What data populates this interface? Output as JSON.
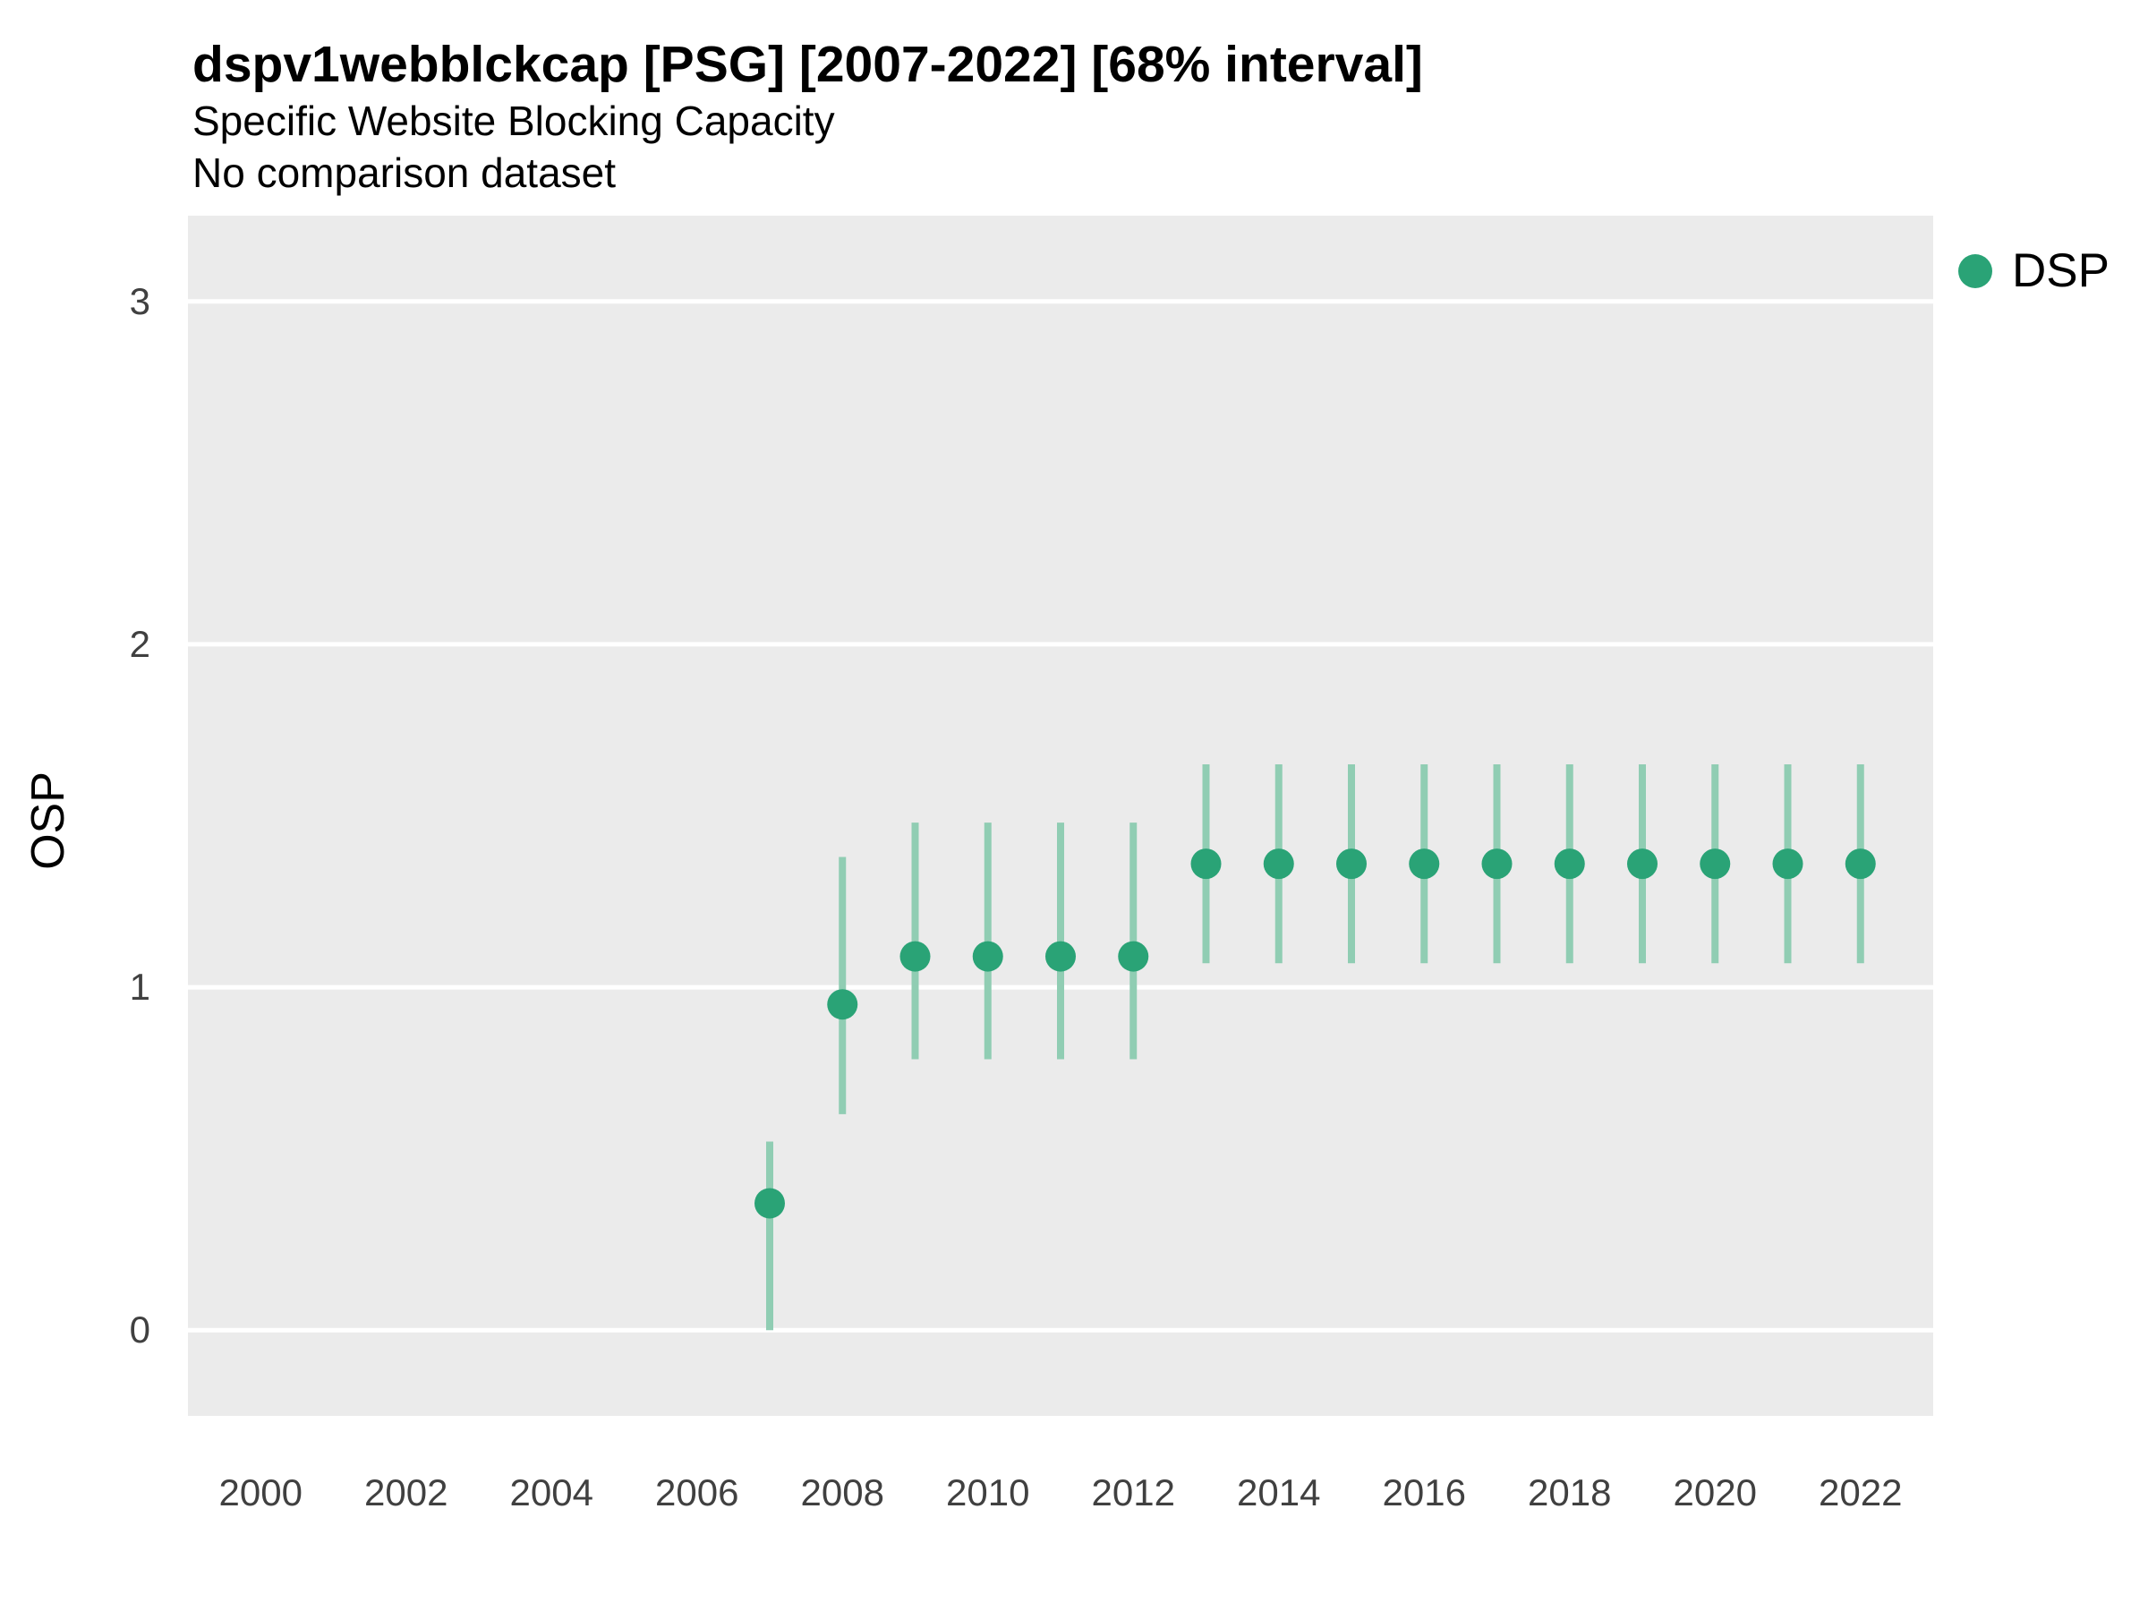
{
  "title": "dspv1webblckcap [PSG] [2007-2022] [68% interval]",
  "subtitle": "Specific Website Blocking Capacity",
  "note": "No comparison dataset",
  "y_axis_label": "OSP",
  "legend": {
    "items": [
      {
        "label": "DSP",
        "color": "#2aa376"
      }
    ]
  },
  "colors": {
    "panel_background": "#ebebeb",
    "grid_line": "#ffffff",
    "point": "#2aa376",
    "interval_line": "#90cdb3",
    "axis_text": "#404040",
    "title_text": "#000000"
  },
  "chart_data": {
    "type": "scatter",
    "title": "dspv1webblckcap [PSG] [2007-2022] [68% interval]",
    "subtitle": "Specific Website Blocking Capacity",
    "note": "No comparison dataset",
    "xlabel": "",
    "ylabel": "OSP",
    "xlim": [
      1999,
      2023
    ],
    "ylim": [
      -0.25,
      3.25
    ],
    "x_ticks": [
      2000,
      2002,
      2004,
      2006,
      2008,
      2010,
      2012,
      2014,
      2016,
      2018,
      2020,
      2022
    ],
    "y_ticks": [
      0,
      1,
      2,
      3
    ],
    "grid": "horizontal-major-only",
    "legend_position": "right-top-outside",
    "interval_level": "68%",
    "series": [
      {
        "name": "DSP",
        "points": [
          {
            "x": 2007,
            "y": 0.37,
            "lo": 0.0,
            "hi": 0.55
          },
          {
            "x": 2008,
            "y": 0.95,
            "lo": 0.63,
            "hi": 1.38
          },
          {
            "x": 2009,
            "y": 1.09,
            "lo": 0.79,
            "hi": 1.48
          },
          {
            "x": 2010,
            "y": 1.09,
            "lo": 0.79,
            "hi": 1.48
          },
          {
            "x": 2011,
            "y": 1.09,
            "lo": 0.79,
            "hi": 1.48
          },
          {
            "x": 2012,
            "y": 1.09,
            "lo": 0.79,
            "hi": 1.48
          },
          {
            "x": 2013,
            "y": 1.36,
            "lo": 1.07,
            "hi": 1.65
          },
          {
            "x": 2014,
            "y": 1.36,
            "lo": 1.07,
            "hi": 1.65
          },
          {
            "x": 2015,
            "y": 1.36,
            "lo": 1.07,
            "hi": 1.65
          },
          {
            "x": 2016,
            "y": 1.36,
            "lo": 1.07,
            "hi": 1.65
          },
          {
            "x": 2017,
            "y": 1.36,
            "lo": 1.07,
            "hi": 1.65
          },
          {
            "x": 2018,
            "y": 1.36,
            "lo": 1.07,
            "hi": 1.65
          },
          {
            "x": 2019,
            "y": 1.36,
            "lo": 1.07,
            "hi": 1.65
          },
          {
            "x": 2020,
            "y": 1.36,
            "lo": 1.07,
            "hi": 1.65
          },
          {
            "x": 2021,
            "y": 1.36,
            "lo": 1.07,
            "hi": 1.65
          },
          {
            "x": 2022,
            "y": 1.36,
            "lo": 1.07,
            "hi": 1.65
          }
        ]
      }
    ]
  }
}
